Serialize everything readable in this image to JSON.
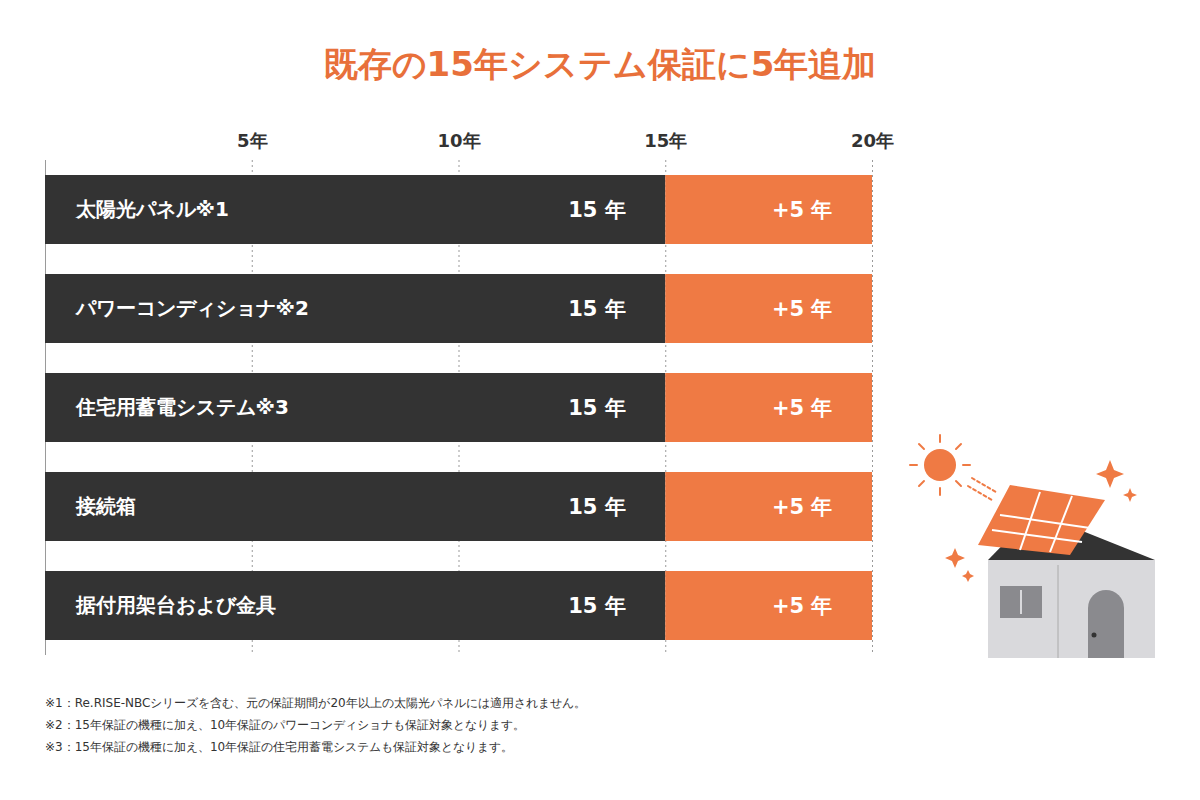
{
  "chart_data": {
    "type": "bar",
    "title": "既存の15年システム保証に5年追加",
    "orientation": "horizontal",
    "stacked": true,
    "data_labels": true,
    "grid": true,
    "tick_labels": "x",
    "categories": [
      "太陽光パネル※1",
      "パワーコンディショナ※2",
      "住宅用蓄電システム※3",
      "接続箱",
      "据付用架台および金具"
    ],
    "series": [
      {
        "color": "#333333",
        "values": [
          15,
          15,
          15,
          15,
          15
        ],
        "value_labels": [
          "15 年",
          "15 年",
          "15 年",
          "15 年",
          "15 年"
        ]
      },
      {
        "color": "#ef7a44",
        "values": [
          5,
          5,
          5,
          5,
          5
        ],
        "value_labels": [
          "+5 年",
          "+5 年",
          "+5 年",
          "+5 年",
          "+5 年"
        ]
      }
    ],
    "xlim": [
      0,
      20
    ],
    "xticks": [
      {
        "value": 5,
        "label": "5年"
      },
      {
        "value": 10,
        "label": "10年"
      },
      {
        "value": 15,
        "label": "15年"
      },
      {
        "value": 20,
        "label": "20年"
      }
    ],
    "notes": [
      "※1：Re.RISE-NBCシリーズを含む、元の保証期間が20年以上の太陽光パネルには適用されません。",
      "※2：15年保証の機種に加え、10年保証のパワーコンディショナも保証対象となります。",
      "※3：15年保証の機種に加え、10年保証の住宅用蓄電システムも保証対象となります。"
    ]
  }
}
